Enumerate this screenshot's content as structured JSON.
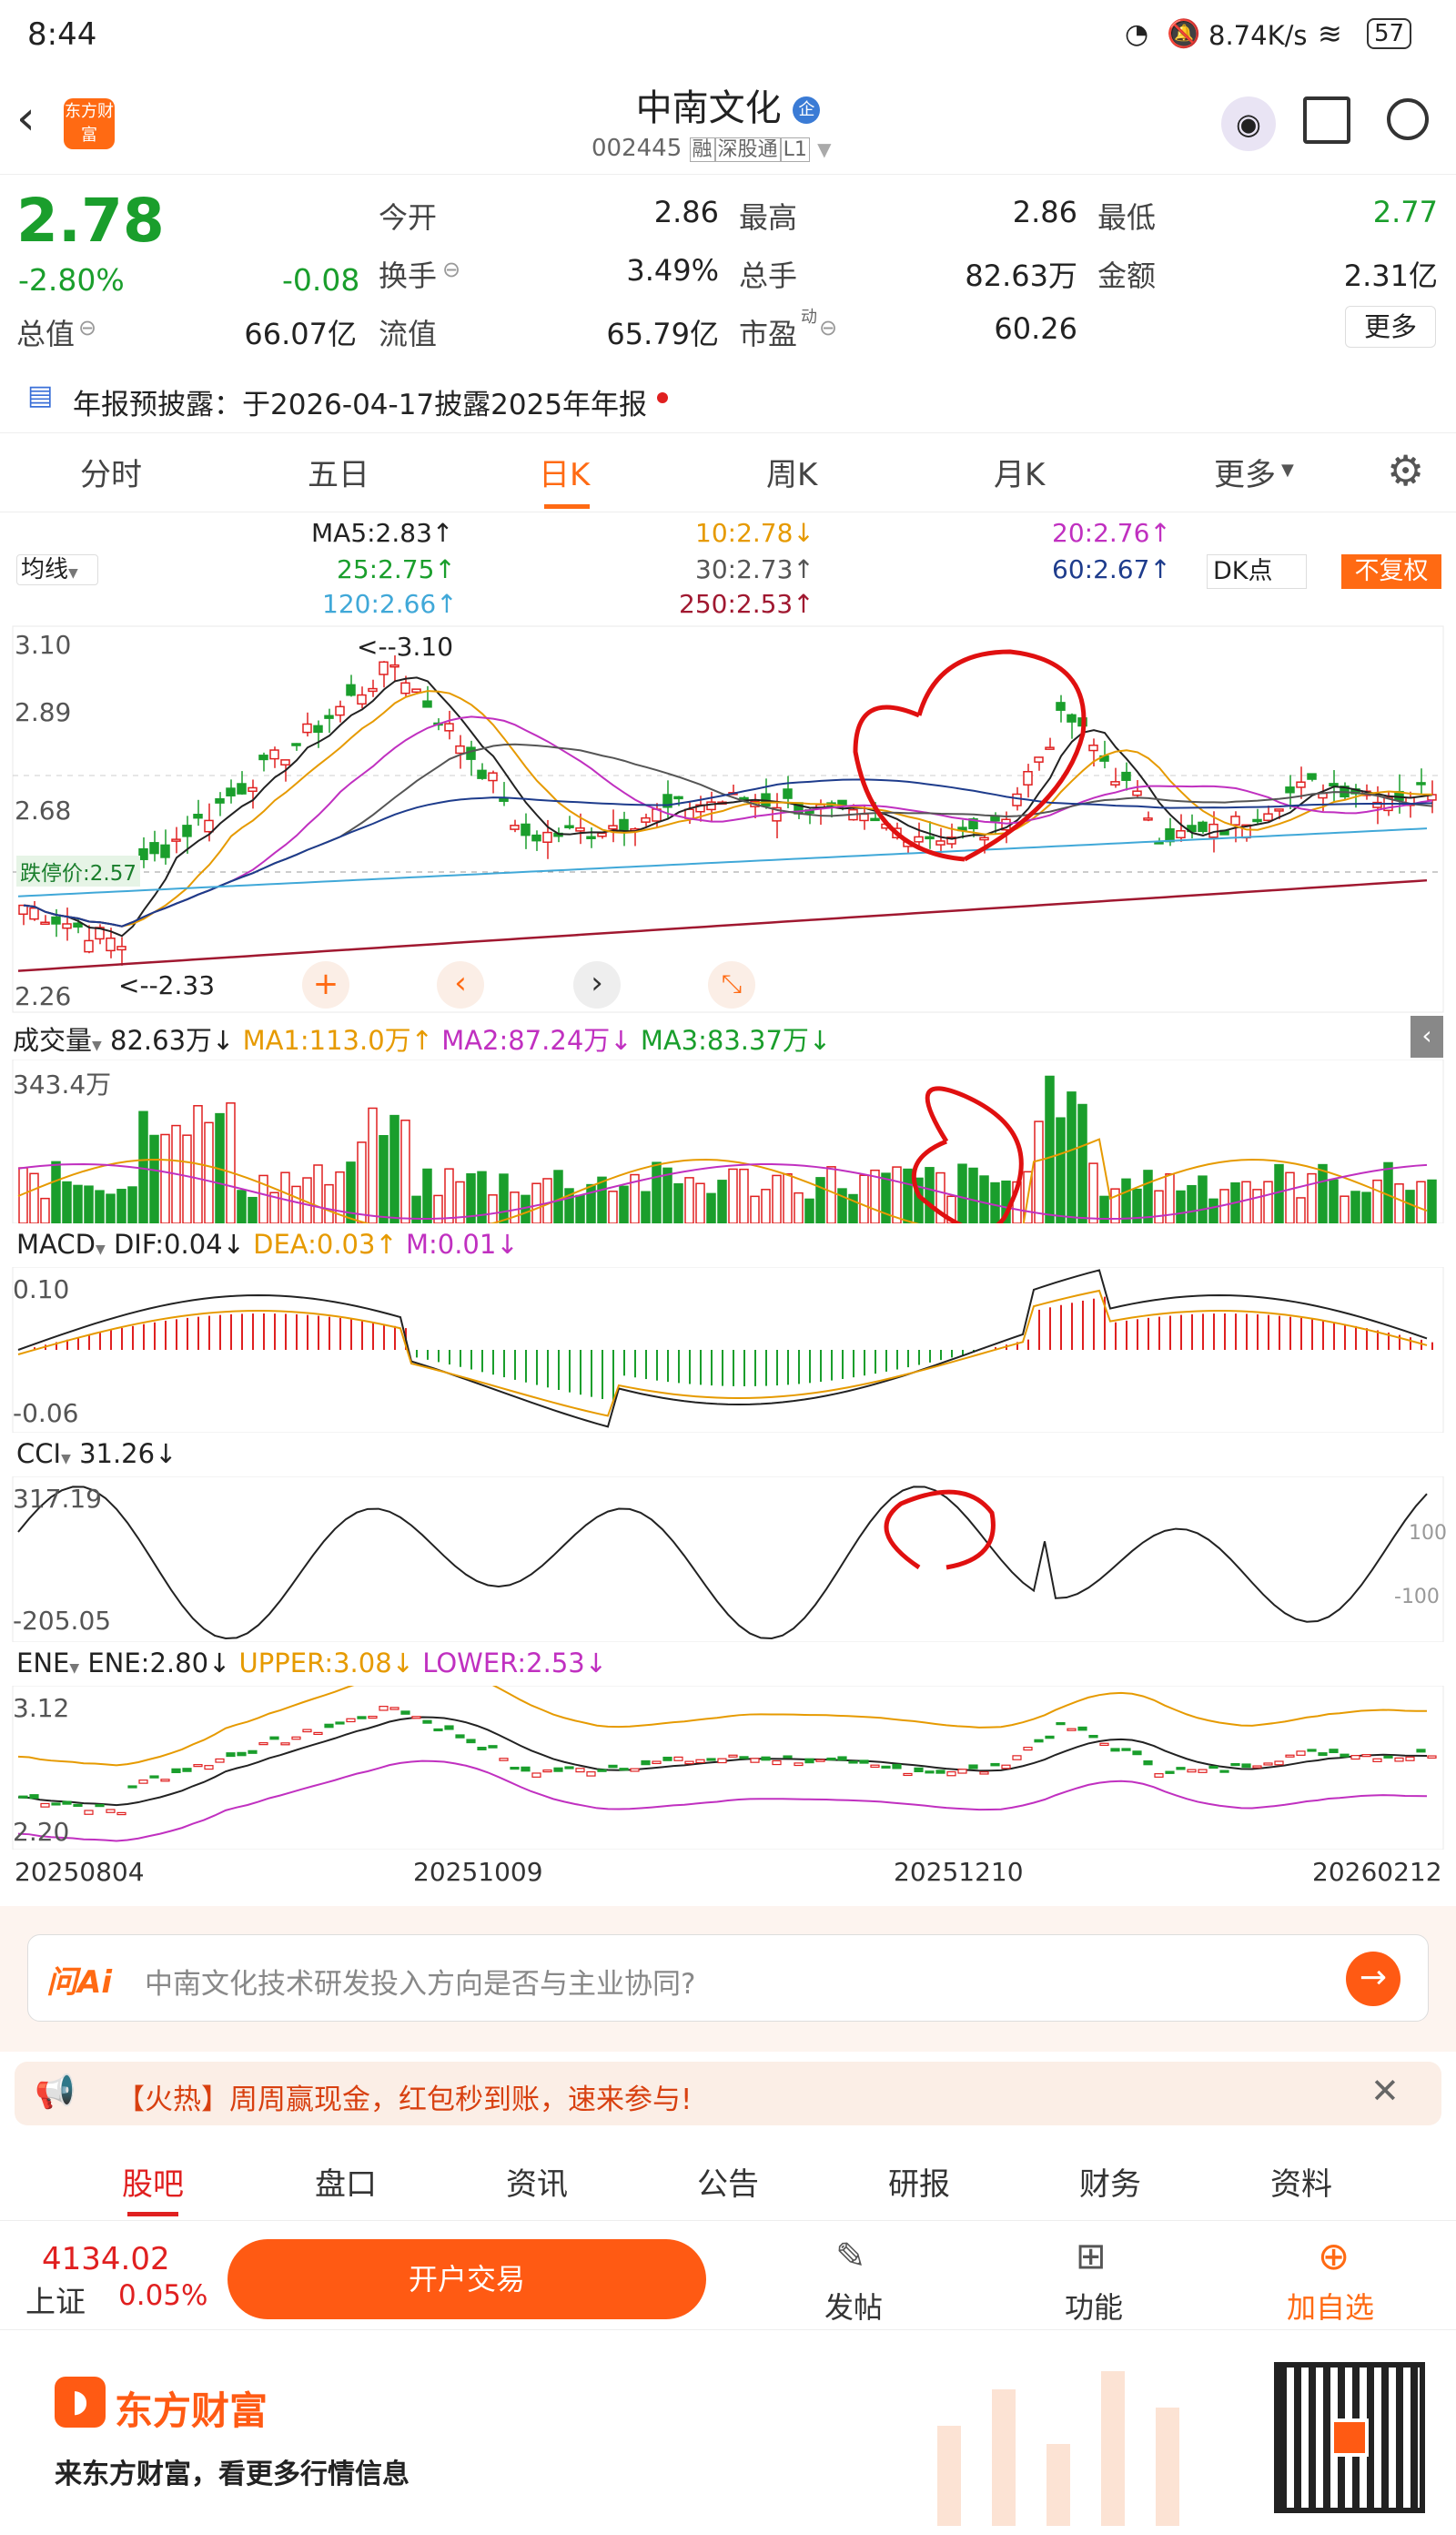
{
  "status": {
    "time": "8:44",
    "speed": "8.74K/s",
    "battery": "57"
  },
  "header": {
    "title": "中南文化",
    "code": "002445",
    "tags": [
      "融",
      "深股通",
      "L1"
    ],
    "logo": "东方财富"
  },
  "quote": {
    "price": "2.78",
    "change_pct": "-2.80%",
    "change": "-0.08",
    "rows": [
      [
        {
          "label": "今开",
          "value": "2.86"
        },
        {
          "label": "最高",
          "value": "2.86"
        },
        {
          "label": "最低",
          "value": "2.77"
        }
      ],
      [
        {
          "label": "换手",
          "value": "3.49%"
        },
        {
          "label": "总手",
          "value": "82.63万"
        },
        {
          "label": "金额",
          "value": "2.31亿"
        }
      ],
      [
        {
          "label": "总值",
          "value": "66.07亿"
        },
        {
          "label": "流值",
          "value": "65.79亿"
        },
        {
          "label": "市盈",
          "value": "60.26"
        }
      ]
    ],
    "more": "更多"
  },
  "notice": "年报预披露：于2026-04-17披露2025年年报",
  "tabs": [
    "分时",
    "五日",
    "日K",
    "周K",
    "月K",
    "更多"
  ],
  "ma": {
    "selector": "均线",
    "ma5": "MA5:2.83↑",
    "ma10": "10:2.78↓",
    "ma20": "20:2.76↑",
    "ma25": "25:2.75↑",
    "ma30": "30:2.73↑",
    "ma60": "60:2.67↑",
    "ma120": "120:2.66↑",
    "ma250": "250:2.53↑",
    "dk": "DK点",
    "adjust": "不复权"
  },
  "kline": {
    "y_high": "3.10",
    "y_mid1": "2.89",
    "y_mid2": "2.68",
    "y_low": "2.26",
    "limit_down": "跌停价:2.57",
    "max_mark": "<--3.10",
    "min_mark": "<--2.33"
  },
  "volume": {
    "label": "成交量",
    "value": "82.63万↓",
    "ma1": "MA1:113.0万↑",
    "ma2": "MA2:87.24万↓",
    "ma3": "MA3:83.37万↓",
    "ymax": "343.4万"
  },
  "macd": {
    "label": "MACD",
    "dif": "DIF:0.04↓",
    "dea": "DEA:0.03↑",
    "m": "M:0.01↓",
    "ymax": "0.10",
    "ymin": "-0.06"
  },
  "cci": {
    "label": "CCI",
    "value": "31.26↓",
    "ymax": "317.19",
    "ymin": "-205.05",
    "r100": "100",
    "rm100": "-100"
  },
  "ene": {
    "label": "ENE",
    "ene": "ENE:2.80↓",
    "upper": "UPPER:3.08↓",
    "lower": "LOWER:2.53↓",
    "ymax": "3.12",
    "ymin": "2.20"
  },
  "dates": [
    "20250804",
    "20251009",
    "20251210",
    "20260212"
  ],
  "ask": {
    "brand": "问Ai",
    "placeholder": "中南文化技术研发投入方向是否与主业协同?"
  },
  "promo": "【火热】周周赢现金，红包秒到账，速来参与!",
  "bottom_tabs": [
    "股吧",
    "盘口",
    "资讯",
    "公告",
    "研报",
    "财务",
    "资料"
  ],
  "index": {
    "value": "4134.02",
    "name": "上证",
    "change": "0.05%"
  },
  "actions": {
    "trade": "开户交易",
    "post": "发帖",
    "func": "功能",
    "fav": "加自选"
  },
  "footer": {
    "brand": "东方财富",
    "slogan": "来东方财富，看更多行情信息"
  },
  "colors": {
    "up": "#e02020",
    "down": "#1a9e2c",
    "accent": "#ff6a13"
  }
}
